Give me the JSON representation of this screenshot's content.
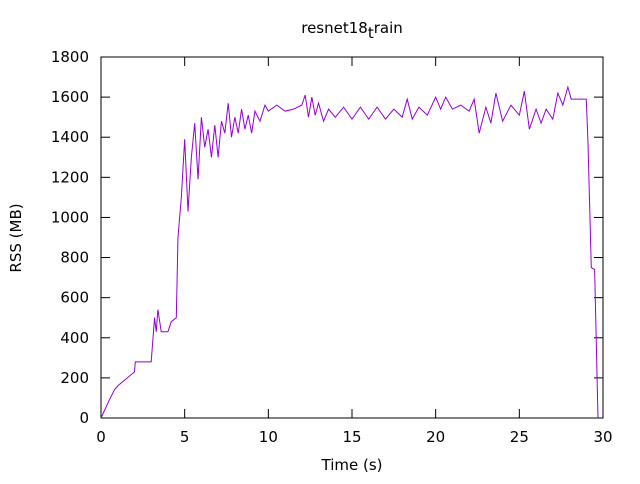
{
  "chart_data": {
    "type": "line",
    "title": "resnet18_train",
    "xlabel": "Time (s)",
    "ylabel": "RSS (MB)",
    "x": [
      0,
      0.5,
      0.8,
      1.0,
      1.5,
      2.0,
      2.05,
      2.9,
      3.0,
      3.2,
      3.3,
      3.4,
      3.6,
      4.0,
      4.2,
      4.5,
      4.6,
      4.8,
      5.0,
      5.2,
      5.4,
      5.6,
      5.8,
      6.0,
      6.2,
      6.4,
      6.6,
      6.8,
      7.0,
      7.2,
      7.4,
      7.6,
      7.8,
      8.0,
      8.2,
      8.4,
      8.6,
      8.8,
      9.0,
      9.2,
      9.5,
      9.8,
      10,
      10.5,
      11,
      11.5,
      12,
      12.2,
      12.4,
      12.6,
      12.8,
      13,
      13.3,
      13.6,
      14,
      14.5,
      15,
      15.5,
      16,
      16.5,
      17,
      17.5,
      18,
      18.3,
      18.6,
      19,
      19.5,
      20,
      20.3,
      20.6,
      21,
      21.5,
      22,
      22.3,
      22.6,
      23,
      23.3,
      23.6,
      24,
      24.5,
      25,
      25.3,
      25.6,
      26,
      26.3,
      26.6,
      27,
      27.3,
      27.6,
      27.9,
      28.1,
      28.5,
      29.0,
      29.1,
      29.3,
      29.5,
      29.7
    ],
    "values": [
      0,
      90,
      140,
      160,
      195,
      230,
      280,
      280,
      280,
      500,
      430,
      540,
      430,
      430,
      480,
      500,
      900,
      1100,
      1390,
      1030,
      1300,
      1470,
      1190,
      1500,
      1350,
      1440,
      1300,
      1460,
      1300,
      1480,
      1420,
      1570,
      1400,
      1500,
      1420,
      1540,
      1440,
      1510,
      1420,
      1530,
      1480,
      1560,
      1530,
      1560,
      1530,
      1540,
      1560,
      1610,
      1500,
      1600,
      1510,
      1570,
      1480,
      1540,
      1500,
      1550,
      1490,
      1550,
      1490,
      1550,
      1490,
      1540,
      1500,
      1590,
      1490,
      1550,
      1510,
      1600,
      1540,
      1600,
      1540,
      1560,
      1530,
      1590,
      1420,
      1550,
      1470,
      1620,
      1480,
      1560,
      1510,
      1630,
      1440,
      1540,
      1470,
      1540,
      1490,
      1620,
      1560,
      1650,
      1590,
      1590,
      1590,
      1380,
      750,
      740,
      0
    ],
    "color": "#9400d3",
    "xlim": [
      0,
      30
    ],
    "xticks": [
      0,
      5,
      10,
      15,
      20,
      25,
      30
    ],
    "ylim": [
      0,
      1800
    ],
    "yticks": [
      0,
      200,
      400,
      600,
      800,
      1000,
      1200,
      1400,
      1600,
      1800
    ]
  }
}
